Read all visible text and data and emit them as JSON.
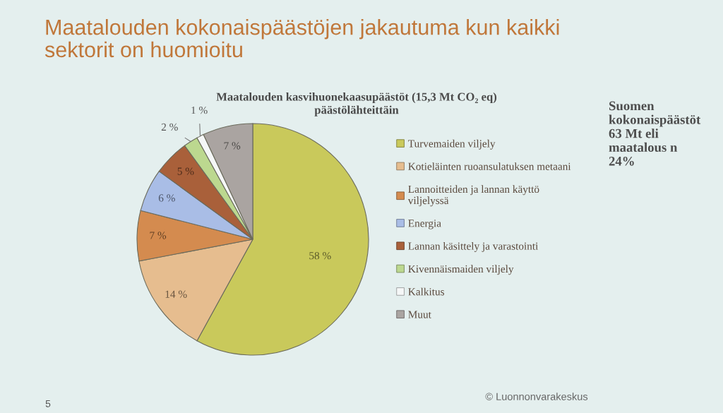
{
  "chart_data": {
    "type": "pie",
    "title": "Maatalouden kokonaispäästöjen jakautuma kun kaikki\nsektorit on huomioitu",
    "subtitle": "Maatalouden kasvihuonekaasupäästöt (15,3 Mt CO₂ eq)\npäästölähteittäin",
    "categories": [
      "Turvemaiden viljely",
      "Kotieläinten ruoansulatuksen metaani",
      "Lannoitteiden ja lannan käyttö\nviljelyssä",
      "Energia",
      "Lannan käsittely ja varastointi",
      "Kivennäismaiden viljely",
      "Kalkitus",
      "Muut"
    ],
    "values": [
      58,
      14,
      7,
      6,
      5,
      2,
      1,
      7
    ],
    "value_labels": [
      "58 %",
      "14 %",
      "7 %",
      "6 %",
      "5 %",
      "2 %",
      "1 %",
      "7 %"
    ],
    "colors": [
      "#c9c95b",
      "#e6bd8f",
      "#d48b4f",
      "#a9bde6",
      "#a9603a",
      "#bcd88f",
      "#f5f7f7",
      "#aaa4a1"
    ],
    "legend": "right",
    "annotations": [
      "Suomen\nkokonaispäästöt\n63 Mt eli\nmaatalous n\n24%",
      "5",
      "© Luonnonvarakeskus"
    ]
  }
}
